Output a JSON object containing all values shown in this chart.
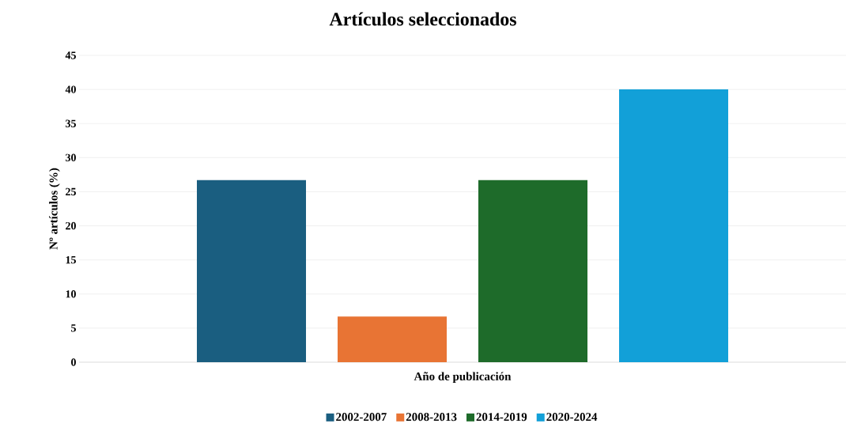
{
  "chart_data": {
    "type": "bar",
    "title": "Artículos seleccionados",
    "xlabel": "Año de publicación",
    "ylabel": "Nº artículos (%)",
    "categories": [
      null
    ],
    "series": [
      {
        "name": "2002-2007",
        "color": "#1a5e80",
        "values": [
          26.7
        ]
      },
      {
        "name": "2008-2013",
        "color": "#e87434",
        "values": [
          6.7
        ]
      },
      {
        "name": "2014-2019",
        "color": "#1e6b2a",
        "values": [
          26.7
        ]
      },
      {
        "name": "2020-2024",
        "color": "#12a0d8",
        "values": [
          40
        ]
      }
    ],
    "ylim": [
      0,
      45
    ],
    "yticks": [
      0,
      5,
      10,
      15,
      20,
      25,
      30,
      35,
      40,
      45
    ],
    "grid": "y",
    "legend": "bottom"
  }
}
